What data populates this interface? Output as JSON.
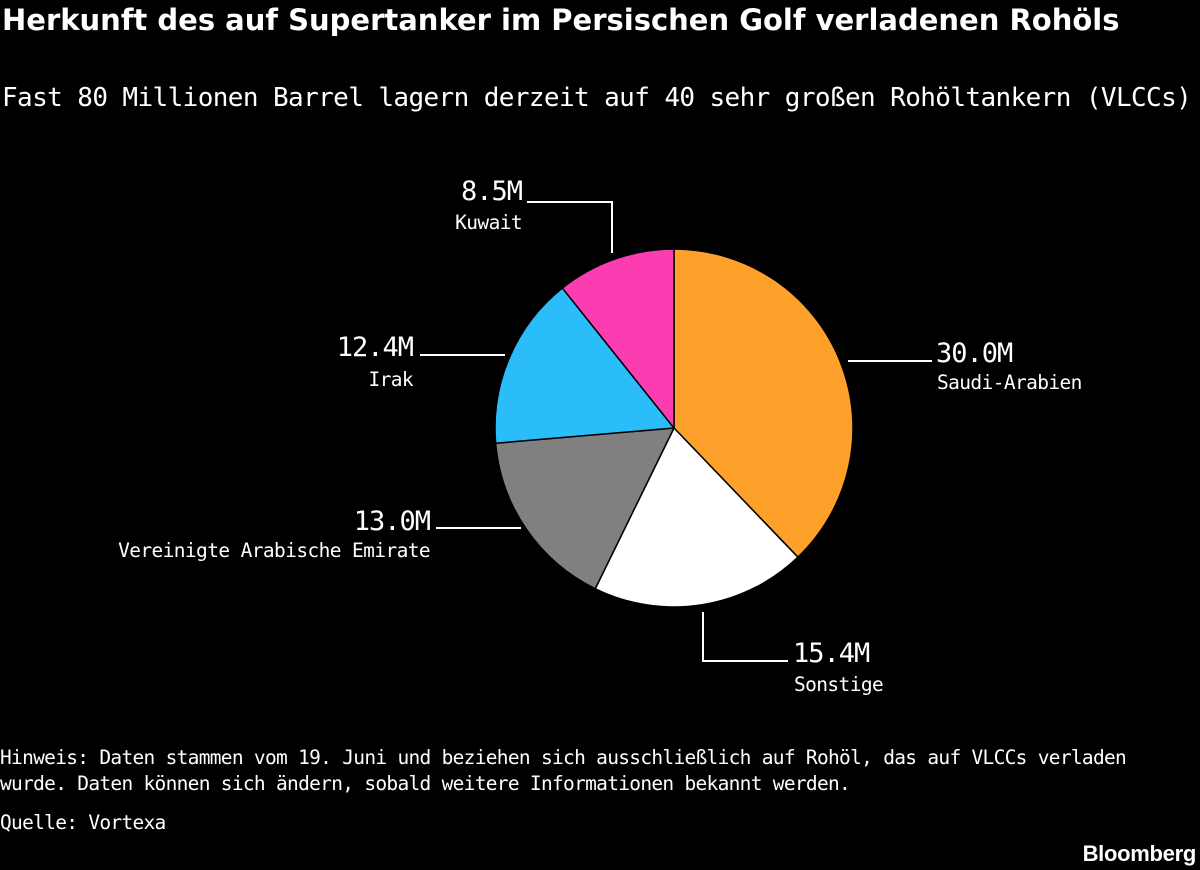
{
  "title": "Herkunft des auf Supertanker im Persischen Golf verladenen Rohöls",
  "subtitle": "Fast 80 Millionen Barrel lagern derzeit auf 40 sehr großen Rohöltankern (VLCCs)",
  "note": "Hinweis: Daten stammen vom 19. Juni und beziehen sich ausschließlich auf Rohöl, das auf VLCCs verladen wurde. Daten können sich ändern, sobald weitere Informationen bekannt werden.",
  "source": "Quelle: Vortexa",
  "brand": "Bloomberg",
  "chart_data": {
    "type": "pie",
    "title": "Herkunft des auf Supertanker im Persischen Golf verladenen Rohöls",
    "subtitle": "Fast 80 Millionen Barrel lagern derzeit auf 40 sehr großen Rohöltankern (VLCCs)",
    "start_angle_deg": 0,
    "direction": "clockwise",
    "legend": "none",
    "slices": [
      {
        "label": "Saudi-Arabien",
        "value": 30.0,
        "value_label": "30.0M",
        "color": "#fda12b"
      },
      {
        "label": "Sonstige",
        "value": 15.4,
        "value_label": "15.4M",
        "color": "#ffffff"
      },
      {
        "label": "Vereinigte Arabische Emirate",
        "value": 13.0,
        "value_label": "13.0M",
        "color": "#808080"
      },
      {
        "label": "Irak",
        "value": 12.4,
        "value_label": "12.4M",
        "color": "#2bbcfa"
      },
      {
        "label": "Kuwait",
        "value": 8.5,
        "value_label": "8.5M",
        "color": "#fb3db1"
      }
    ]
  }
}
